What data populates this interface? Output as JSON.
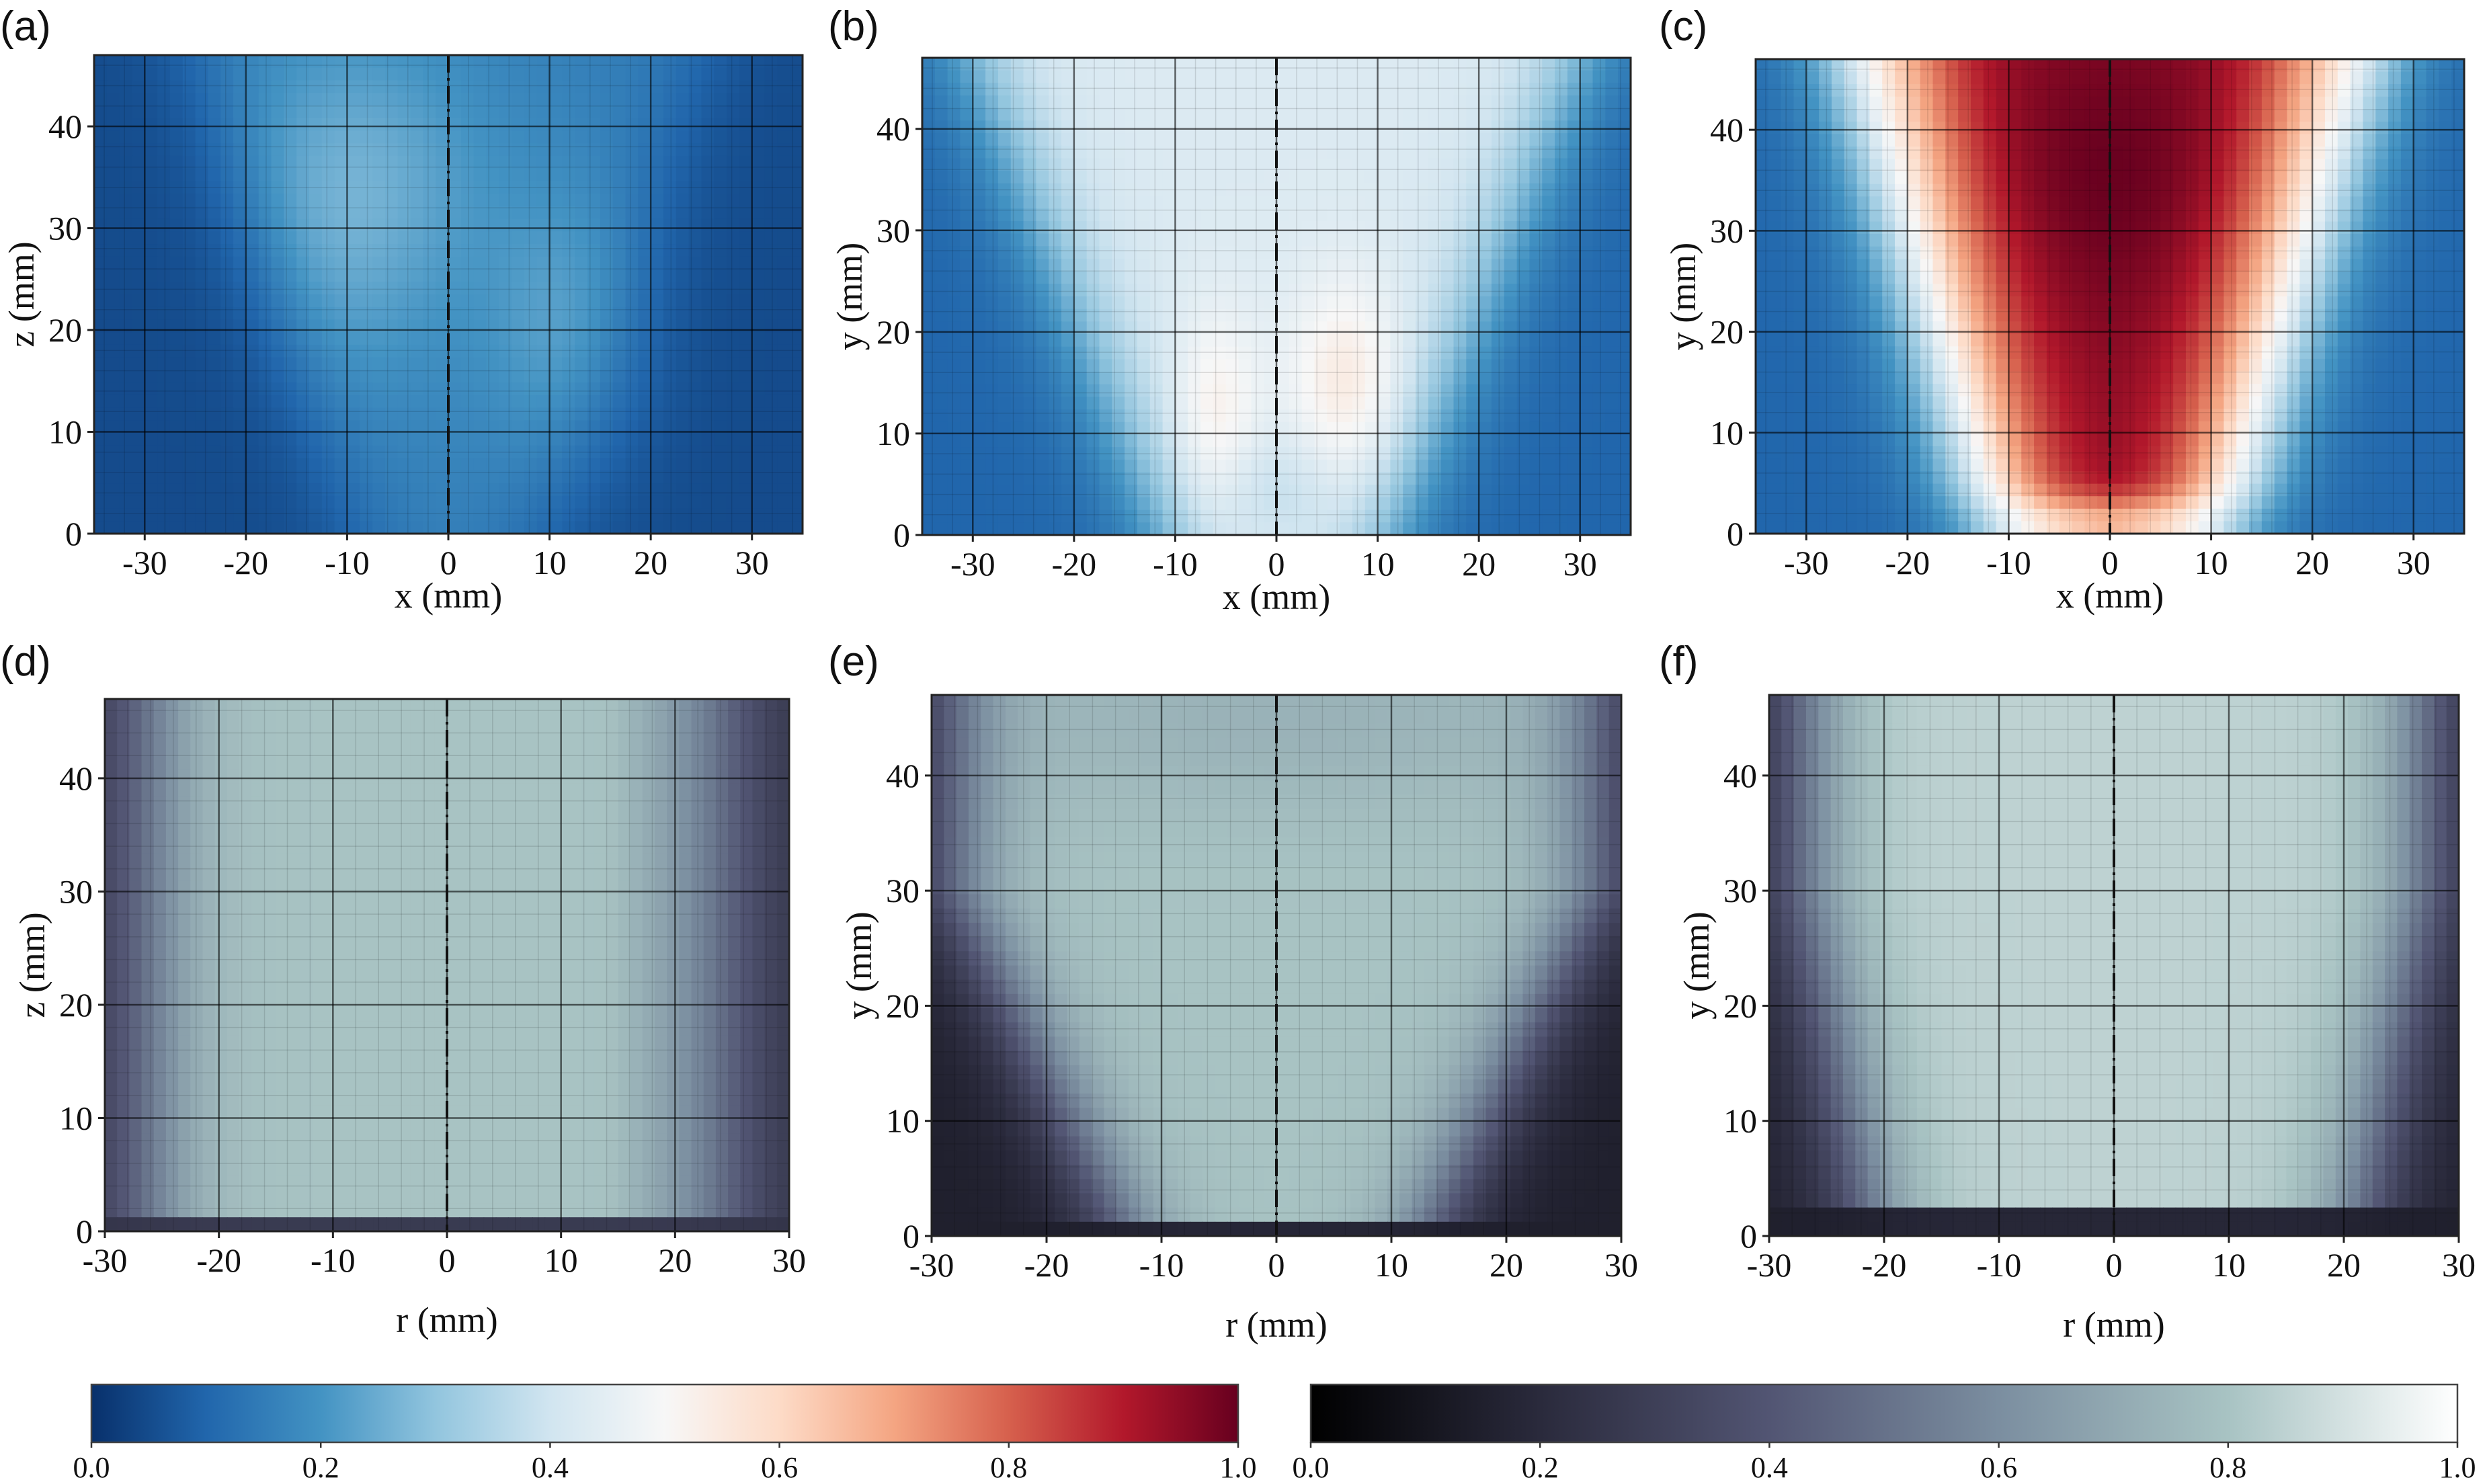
{
  "chart_data": [
    {
      "type": "heatmap",
      "panel": "(a)",
      "colormap": "blue-white-red",
      "xlabel": "x (mm)",
      "ylabel": "z (mm)",
      "xticks": [
        "-30",
        "-20",
        "-10",
        "0",
        "10",
        "20",
        "30"
      ],
      "yticks": [
        "0",
        "10",
        "20",
        "30",
        "40"
      ],
      "xlim": [
        -35,
        35
      ],
      "ylim": [
        0,
        47
      ],
      "grid": true,
      "centerline": 0,
      "field_level_range": [
        0.05,
        0.3
      ]
    },
    {
      "type": "heatmap",
      "panel": "(b)",
      "colormap": "blue-white-red",
      "xlabel": "x (mm)",
      "ylabel": "y (mm)",
      "xticks": [
        "-30",
        "-20",
        "-10",
        "0",
        "10",
        "20",
        "30"
      ],
      "yticks": [
        "0",
        "10",
        "20",
        "30",
        "40"
      ],
      "xlim": [
        -35,
        35
      ],
      "ylim": [
        0,
        47
      ],
      "grid": true,
      "centerline": 0,
      "field_level_range": [
        0.1,
        0.6
      ]
    },
    {
      "type": "heatmap",
      "panel": "(c)",
      "colormap": "blue-white-red",
      "xlabel": "x (mm)",
      "ylabel": "y (mm)",
      "xticks": [
        "-30",
        "-20",
        "-10",
        "0",
        "10",
        "20",
        "30"
      ],
      "yticks": [
        "0",
        "10",
        "20",
        "30",
        "40"
      ],
      "xlim": [
        -35,
        35
      ],
      "ylim": [
        0,
        47
      ],
      "grid": true,
      "centerline": 0,
      "field_level_range": [
        0.1,
        0.95
      ]
    },
    {
      "type": "heatmap",
      "panel": "(d)",
      "colormap": "bone",
      "xlabel": "r (mm)",
      "ylabel": "z (mm)",
      "xticks": [
        "-30",
        "-20",
        "-10",
        "0",
        "10",
        "20",
        "30"
      ],
      "yticks": [
        "0",
        "10",
        "20",
        "30",
        "40"
      ],
      "xlim": [
        -30,
        30
      ],
      "ylim": [
        0,
        47
      ],
      "grid": true,
      "centerline": 0
    },
    {
      "type": "heatmap",
      "panel": "(e)",
      "colormap": "bone",
      "xlabel": "r (mm)",
      "ylabel": "y (mm)",
      "xticks": [
        "-30",
        "-20",
        "-10",
        "0",
        "10",
        "20",
        "30"
      ],
      "yticks": [
        "0",
        "10",
        "20",
        "30",
        "40"
      ],
      "xlim": [
        -30,
        30
      ],
      "ylim": [
        0,
        47
      ],
      "grid": true,
      "centerline": 0
    },
    {
      "type": "heatmap",
      "panel": "(f)",
      "colormap": "bone",
      "xlabel": "r (mm)",
      "ylabel": "y (mm)",
      "xticks": [
        "-30",
        "-20",
        "-10",
        "0",
        "10",
        "20",
        "30"
      ],
      "yticks": [
        "0",
        "10",
        "20",
        "30",
        "40"
      ],
      "xlim": [
        -30,
        30
      ],
      "ylim": [
        0,
        47
      ],
      "grid": true,
      "centerline": 0
    }
  ],
  "colorbars": [
    {
      "colormap": "blue-white-red",
      "range": [
        0,
        1
      ],
      "ticks": [
        "0.0",
        "0.2",
        "0.4",
        "0.6",
        "0.8",
        "1.0"
      ],
      "colors": [
        "#08306b",
        "#2166ac",
        "#4393c3",
        "#92c5de",
        "#d1e5f0",
        "#f7f7f7",
        "#fddbc7",
        "#f4a582",
        "#d6604d",
        "#b2182b",
        "#67001f"
      ]
    },
    {
      "colormap": "bone",
      "range": [
        0,
        1
      ],
      "ticks": [
        "0.0",
        "0.2",
        "0.4",
        "0.6",
        "0.8",
        "1.0"
      ],
      "colors": [
        "#000000",
        "#2a2a3c",
        "#525573",
        "#7b8ea0",
        "#a8c3c3",
        "#ffffff"
      ]
    }
  ],
  "colors": {
    "bwr_stops": [
      "#08306b",
      "#2166ac",
      "#4393c3",
      "#92c5de",
      "#d1e5f0",
      "#f7f7f7",
      "#fddbc7",
      "#f4a582",
      "#d6604d",
      "#b2182b",
      "#67001f"
    ],
    "bone_stops": [
      "#000000",
      "#2a2a3c",
      "#525573",
      "#7b8ea0",
      "#a8c3c3",
      "#ffffff"
    ]
  }
}
